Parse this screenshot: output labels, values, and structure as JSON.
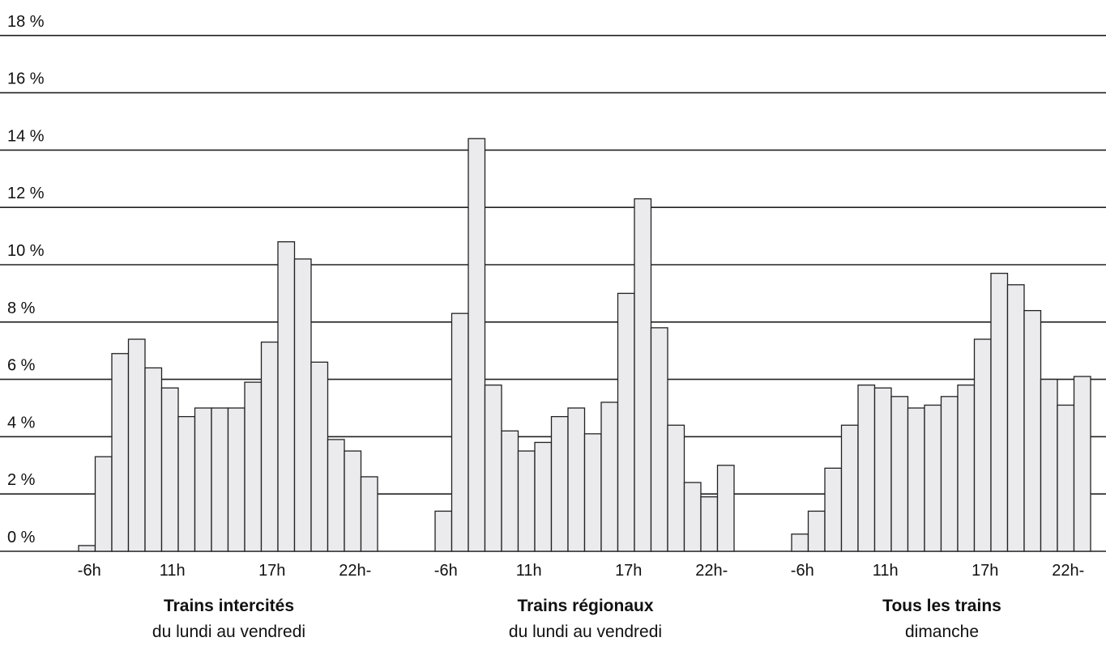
{
  "chart_data": {
    "type": "bar",
    "y_unit": "%",
    "ylim": [
      0,
      18
    ],
    "y_ticks": [
      "0 %",
      "2 %",
      "4 %",
      "6 %",
      "8 %",
      "10 %",
      "12 %",
      "14 %",
      "16 %",
      "18 %"
    ],
    "grid": true,
    "bar_color": "#ebebee",
    "x_tick_labels": [
      "-6h",
      "11h",
      "17h",
      "22h-"
    ],
    "groups": [
      {
        "title": "Trains intercités",
        "subtitle": "du lundi au vendredi",
        "values": [
          0.2,
          3.3,
          6.9,
          7.4,
          6.4,
          5.7,
          4.7,
          5.0,
          5.0,
          5.0,
          5.9,
          7.3,
          10.8,
          10.2,
          6.6,
          3.9,
          3.5,
          2.6
        ]
      },
      {
        "title": "Trains régionaux",
        "subtitle": "du lundi au vendredi",
        "values": [
          1.4,
          8.3,
          14.4,
          5.8,
          4.2,
          3.5,
          3.8,
          4.7,
          5.0,
          4.1,
          5.2,
          9.0,
          12.3,
          7.8,
          4.4,
          2.4,
          1.9,
          3.0
        ]
      },
      {
        "title": "Tous les trains",
        "subtitle": "dimanche",
        "values": [
          0.6,
          1.4,
          2.9,
          4.4,
          5.8,
          5.7,
          5.4,
          5.0,
          5.1,
          5.4,
          5.8,
          7.4,
          9.7,
          9.3,
          8.4,
          6.0,
          5.1,
          6.1
        ]
      }
    ]
  }
}
